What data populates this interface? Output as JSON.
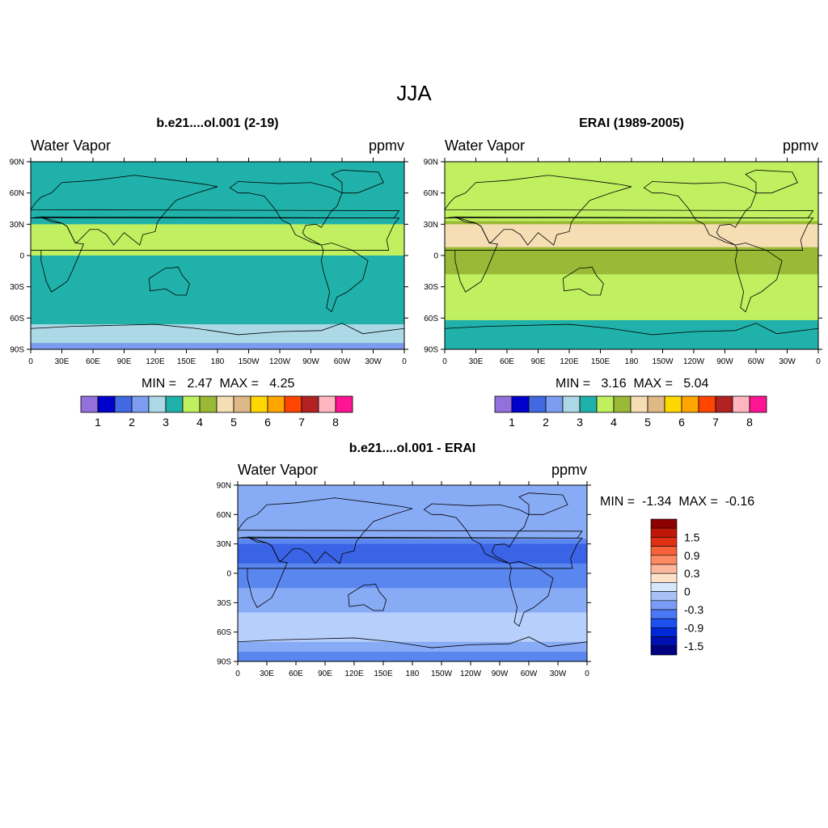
{
  "figure": {
    "title": "JJA",
    "colors": {
      "purple": "#9370db",
      "blue_dark": "#0000cd",
      "blue": "#4169e1",
      "blue_light": "#7b9cf0",
      "lightblue": "#add8e6",
      "teal": "#20b2aa",
      "lightgreen": "#c0ef60",
      "olive": "#9ab936",
      "wheat": "#f5deb3",
      "tan": "#deb887",
      "gold": "#ffd700",
      "orange": "#ffa500",
      "red_orange": "#ff4500",
      "firebrick": "#b22222",
      "pink": "#ffb6c1",
      "deeppink": "#ff1493"
    }
  },
  "panels": [
    {
      "title": "b.e21....ol.001 (2-19)",
      "left_label": "Water Vapor",
      "right_label": "ppmv",
      "min_text": "MIN =   2.47  MAX =   4.25",
      "background_band": "teal",
      "bands": [
        {
          "from_lat": -90,
          "to_lat": -84,
          "color": "blue_light"
        },
        {
          "from_lat": -84,
          "to_lat": -66,
          "color": "lightblue"
        },
        {
          "from_lat": 0,
          "to_lat": 30,
          "color": "lightgreen"
        }
      ]
    },
    {
      "title": "ERAI (1989-2005)",
      "left_label": "Water Vapor",
      "right_label": "ppmv",
      "min_text": "MIN =   3.16  MAX =   5.04",
      "background_band": "lightgreen",
      "bands": [
        {
          "from_lat": -90,
          "to_lat": -62,
          "color": "teal"
        },
        {
          "from_lat": -18,
          "to_lat": 33,
          "color": "olive"
        },
        {
          "from_lat": 8,
          "to_lat": 30,
          "color": "wheat"
        }
      ]
    },
    {
      "title": "b.e21....ol.001 - ERAI",
      "left_label": "Water Vapor",
      "right_label": "ppmv",
      "min_text": "MIN =  -1.34  MAX =  -0.16",
      "background_band": "diff_m03",
      "bands": [
        {
          "from_lat": -90,
          "to_lat": -80,
          "color": "diff_m06"
        },
        {
          "from_lat": -80,
          "to_lat": -70,
          "color": "diff_m03"
        },
        {
          "from_lat": -70,
          "to_lat": -40,
          "color": "diff_m00"
        },
        {
          "from_lat": -40,
          "to_lat": -15,
          "color": "diff_m03"
        },
        {
          "from_lat": -15,
          "to_lat": 35,
          "color": "diff_m06"
        },
        {
          "from_lat": 10,
          "to_lat": 30,
          "color": "diff_m09"
        }
      ]
    }
  ],
  "axes": {
    "lat_ticks": [
      "90N",
      "60N",
      "30N",
      "0",
      "30S",
      "60S",
      "90S"
    ],
    "lon_ticks": [
      "0",
      "30E",
      "60E",
      "90E",
      "120E",
      "150E",
      "180",
      "150W",
      "120W",
      "90W",
      "60W",
      "30W",
      "0"
    ]
  },
  "abs_colorbar": {
    "colors": [
      "purple",
      "blue_dark",
      "blue",
      "blue_light",
      "lightblue",
      "teal",
      "lightgreen",
      "olive",
      "wheat",
      "tan",
      "gold",
      "orange",
      "red_orange",
      "firebrick",
      "pink",
      "deeppink"
    ],
    "labels": [
      "1",
      "2",
      "3",
      "4",
      "5",
      "6",
      "7",
      "8"
    ]
  },
  "diff_colorbar": {
    "colors": [
      "#000080",
      "#0010b0",
      "#0028d8",
      "#1e4fef",
      "#4a78f5",
      "#7a9cf5",
      "#a7c1f7",
      "#d6e6fb",
      "#fde2c8",
      "#fcb79c",
      "#fd8a62",
      "#f5623a",
      "#e03013",
      "#c01708",
      "#8b0000"
    ],
    "labels": [
      "1.5",
      "0.9",
      "0.3",
      "0",
      "-0.3",
      "-0.9",
      "-1.5"
    ],
    "diff_map_colors": {
      "diff_m00": "#b7cffb",
      "diff_m03": "#88abf5",
      "diff_m06": "#5a86ef",
      "diff_m09": "#3a63e6"
    }
  }
}
